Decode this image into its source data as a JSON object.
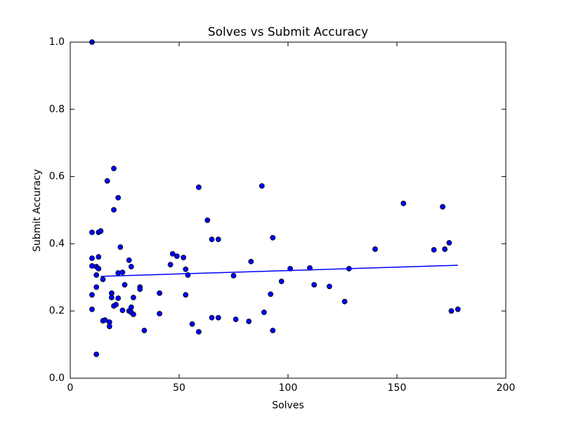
{
  "chart_data": {
    "type": "scatter",
    "title": "Solves vs Submit Accuracy",
    "xlabel": "Solves",
    "ylabel": "Submit Accuracy",
    "xlim": [
      0,
      200
    ],
    "ylim": [
      0,
      1
    ],
    "xticks": [
      0,
      50,
      100,
      150,
      200
    ],
    "yticks": [
      {
        "value": 0,
        "label": "0.0"
      },
      {
        "value": 0.2,
        "label": "0.2"
      },
      {
        "value": 0.4,
        "label": "0.4"
      },
      {
        "value": 0.6,
        "label": "0.6"
      },
      {
        "value": 0.8,
        "label": "0.8"
      },
      {
        "value": 1,
        "label": "1.0"
      }
    ],
    "color": "#0000ff",
    "x": [
      10,
      10,
      10,
      10,
      10,
      10,
      12,
      12,
      12,
      12,
      13,
      13,
      14,
      13,
      15,
      15,
      16,
      17,
      18,
      18,
      19,
      19,
      20,
      20,
      20,
      21,
      22,
      22,
      22,
      23,
      24,
      24,
      25,
      27,
      27,
      28,
      28,
      28,
      29,
      29,
      32,
      32,
      34,
      41,
      41,
      46,
      47,
      49,
      52,
      53,
      53,
      54,
      56,
      59,
      59,
      63,
      65,
      65,
      68,
      68,
      75,
      76,
      82,
      83,
      88,
      89,
      92,
      93,
      93,
      97,
      101,
      110,
      112,
      119,
      126,
      128,
      140,
      153,
      167,
      171,
      172,
      174,
      175,
      178
    ],
    "y": [
      1.0,
      0.434,
      0.357,
      0.334,
      0.248,
      0.205,
      0.071,
      0.332,
      0.307,
      0.271,
      0.361,
      0.434,
      0.438,
      0.326,
      0.294,
      0.171,
      0.173,
      0.587,
      0.167,
      0.154,
      0.253,
      0.24,
      0.624,
      0.501,
      0.215,
      0.219,
      0.537,
      0.313,
      0.238,
      0.39,
      0.315,
      0.202,
      0.278,
      0.351,
      0.2,
      0.332,
      0.211,
      0.196,
      0.24,
      0.19,
      0.271,
      0.265,
      0.142,
      0.253,
      0.192,
      0.338,
      0.37,
      0.363,
      0.359,
      0.324,
      0.248,
      0.307,
      0.161,
      0.568,
      0.138,
      0.47,
      0.413,
      0.18,
      0.413,
      0.18,
      0.305,
      0.175,
      0.169,
      0.347,
      0.572,
      0.196,
      0.25,
      0.418,
      0.142,
      0.288,
      0.326,
      0.328,
      0.278,
      0.273,
      0.228,
      0.326,
      0.384,
      0.52,
      0.382,
      0.51,
      0.384,
      0.403,
      0.2,
      0.205
    ],
    "fit_line": {
      "x": [
        14,
        178
      ],
      "y": [
        0.303,
        0.336
      ],
      "color": "#0000ff"
    }
  }
}
